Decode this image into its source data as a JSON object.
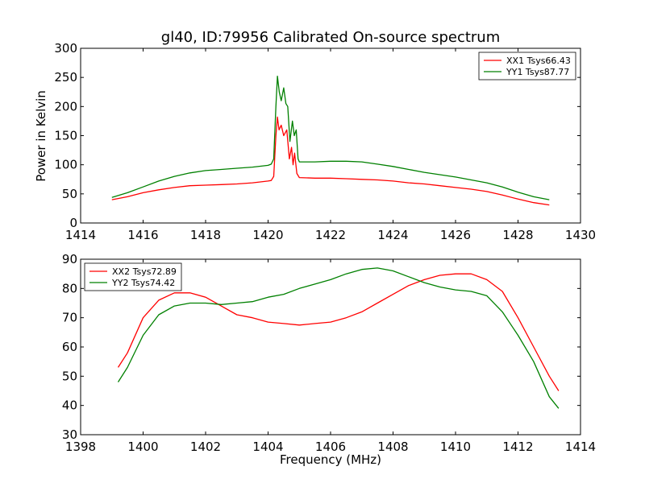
{
  "chart_data": [
    {
      "type": "line",
      "title": "gl40, ID:79956 Calibrated On-source spectrum",
      "xlabel": "",
      "ylabel": "Power in Kelvin",
      "xlim": [
        1414,
        1430
      ],
      "ylim": [
        0,
        300
      ],
      "xticks": [
        1414,
        1416,
        1418,
        1420,
        1422,
        1424,
        1426,
        1428,
        1430
      ],
      "yticks": [
        0,
        50,
        100,
        150,
        200,
        250,
        300
      ],
      "legend_position": "top-right",
      "grid": false,
      "series": [
        {
          "name": "XX1 Tsys66.43",
          "color": "#ff0000",
          "points": [
            [
              1415.0,
              40
            ],
            [
              1415.5,
              45
            ],
            [
              1416.0,
              52
            ],
            [
              1416.5,
              57
            ],
            [
              1417.0,
              61
            ],
            [
              1417.5,
              64
            ],
            [
              1418.0,
              65
            ],
            [
              1418.5,
              66
            ],
            [
              1419.0,
              67
            ],
            [
              1419.5,
              69
            ],
            [
              1420.0,
              72
            ],
            [
              1420.1,
              73
            ],
            [
              1420.18,
              80
            ],
            [
              1420.25,
              150
            ],
            [
              1420.3,
              182
            ],
            [
              1420.35,
              160
            ],
            [
              1420.42,
              168
            ],
            [
              1420.5,
              150
            ],
            [
              1420.6,
              160
            ],
            [
              1420.68,
              110
            ],
            [
              1420.75,
              130
            ],
            [
              1420.8,
              100
            ],
            [
              1420.85,
              120
            ],
            [
              1420.92,
              85
            ],
            [
              1421.0,
              78
            ],
            [
              1421.5,
              77
            ],
            [
              1422.0,
              77
            ],
            [
              1422.5,
              76
            ],
            [
              1423.0,
              75
            ],
            [
              1423.5,
              74
            ],
            [
              1424.0,
              72
            ],
            [
              1424.5,
              69
            ],
            [
              1425.0,
              67
            ],
            [
              1425.5,
              64
            ],
            [
              1426.0,
              61
            ],
            [
              1426.5,
              58
            ],
            [
              1427.0,
              54
            ],
            [
              1427.5,
              48
            ],
            [
              1428.0,
              41
            ],
            [
              1428.5,
              35
            ],
            [
              1429.0,
              31
            ]
          ]
        },
        {
          "name": "YY1 Tsys87.77",
          "color": "#008000",
          "points": [
            [
              1415.0,
              44
            ],
            [
              1415.5,
              52
            ],
            [
              1416.0,
              62
            ],
            [
              1416.5,
              72
            ],
            [
              1417.0,
              80
            ],
            [
              1417.5,
              86
            ],
            [
              1418.0,
              90
            ],
            [
              1418.5,
              92
            ],
            [
              1419.0,
              94
            ],
            [
              1419.5,
              96
            ],
            [
              1420.0,
              99
            ],
            [
              1420.1,
              101
            ],
            [
              1420.18,
              110
            ],
            [
              1420.25,
              200
            ],
            [
              1420.3,
              252
            ],
            [
              1420.36,
              225
            ],
            [
              1420.42,
              210
            ],
            [
              1420.5,
              232
            ],
            [
              1420.57,
              205
            ],
            [
              1420.63,
              200
            ],
            [
              1420.7,
              140
            ],
            [
              1420.78,
              175
            ],
            [
              1420.84,
              150
            ],
            [
              1420.9,
              160
            ],
            [
              1420.96,
              110
            ],
            [
              1421.0,
              105
            ],
            [
              1421.5,
              105
            ],
            [
              1422.0,
              106
            ],
            [
              1422.5,
              106
            ],
            [
              1423.0,
              105
            ],
            [
              1423.5,
              101
            ],
            [
              1424.0,
              97
            ],
            [
              1424.5,
              92
            ],
            [
              1425.0,
              87
            ],
            [
              1425.5,
              83
            ],
            [
              1426.0,
              79
            ],
            [
              1426.5,
              74
            ],
            [
              1427.0,
              69
            ],
            [
              1427.5,
              62
            ],
            [
              1428.0,
              53
            ],
            [
              1428.5,
              45
            ],
            [
              1429.0,
              40
            ]
          ]
        }
      ]
    },
    {
      "type": "line",
      "title": "",
      "xlabel": "Frequency (MHz)",
      "ylabel": "",
      "xlim": [
        1398,
        1414
      ],
      "ylim": [
        30,
        90
      ],
      "xticks": [
        1398,
        1400,
        1402,
        1404,
        1406,
        1408,
        1410,
        1412,
        1414
      ],
      "yticks": [
        30,
        40,
        50,
        60,
        70,
        80,
        90
      ],
      "legend_position": "top-left",
      "grid": false,
      "series": [
        {
          "name": "XX2 Tsys72.89",
          "color": "#ff0000",
          "points": [
            [
              1399.2,
              53
            ],
            [
              1399.5,
              58
            ],
            [
              1400.0,
              70
            ],
            [
              1400.5,
              76
            ],
            [
              1401.0,
              78.5
            ],
            [
              1401.5,
              78.5
            ],
            [
              1402.0,
              77
            ],
            [
              1402.5,
              74
            ],
            [
              1403.0,
              71
            ],
            [
              1403.5,
              70
            ],
            [
              1404.0,
              68.5
            ],
            [
              1404.5,
              68
            ],
            [
              1405.0,
              67.5
            ],
            [
              1405.5,
              68
            ],
            [
              1406.0,
              68.5
            ],
            [
              1406.5,
              70
            ],
            [
              1407.0,
              72
            ],
            [
              1407.5,
              75
            ],
            [
              1408.0,
              78
            ],
            [
              1408.5,
              81
            ],
            [
              1409.0,
              83
            ],
            [
              1409.5,
              84.5
            ],
            [
              1410.0,
              85
            ],
            [
              1410.5,
              85
            ],
            [
              1411.0,
              83
            ],
            [
              1411.5,
              79
            ],
            [
              1412.0,
              70
            ],
            [
              1412.5,
              60
            ],
            [
              1413.0,
              50
            ],
            [
              1413.3,
              45
            ]
          ]
        },
        {
          "name": "YY2 Tsys74.42",
          "color": "#008000",
          "points": [
            [
              1399.2,
              48
            ],
            [
              1399.5,
              53
            ],
            [
              1400.0,
              64
            ],
            [
              1400.5,
              71
            ],
            [
              1401.0,
              74
            ],
            [
              1401.5,
              75
            ],
            [
              1402.0,
              75
            ],
            [
              1402.5,
              74.5
            ],
            [
              1403.0,
              75
            ],
            [
              1403.5,
              75.5
            ],
            [
              1404.0,
              77
            ],
            [
              1404.5,
              78
            ],
            [
              1405.0,
              80
            ],
            [
              1405.5,
              81.5
            ],
            [
              1406.0,
              83
            ],
            [
              1406.5,
              85
            ],
            [
              1407.0,
              86.5
            ],
            [
              1407.5,
              87
            ],
            [
              1408.0,
              86
            ],
            [
              1408.5,
              84
            ],
            [
              1409.0,
              82
            ],
            [
              1409.5,
              80.5
            ],
            [
              1410.0,
              79.5
            ],
            [
              1410.5,
              79
            ],
            [
              1411.0,
              77.5
            ],
            [
              1411.5,
              72
            ],
            [
              1412.0,
              64
            ],
            [
              1412.5,
              55
            ],
            [
              1413.0,
              43
            ],
            [
              1413.3,
              39
            ]
          ]
        }
      ]
    }
  ]
}
